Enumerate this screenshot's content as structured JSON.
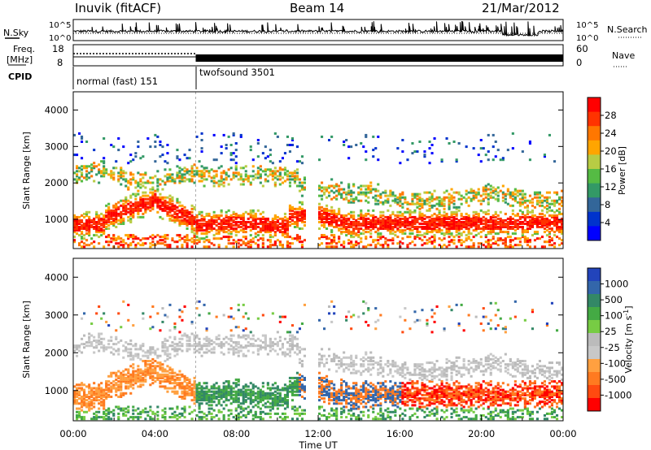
{
  "header": {
    "station": "Inuvik (fitACF)",
    "beam": "Beam 14",
    "date": "21/Mar/2012"
  },
  "chart_data": [
    {
      "type": "line",
      "panel": "noise",
      "left_label": "N.Sky",
      "right_label": "N.Search",
      "ytick_labels_left": [
        "10^5",
        "10^0"
      ],
      "ytick_labels_right": [
        "10^5",
        "10^0"
      ],
      "x_range_hours": [
        0,
        24
      ]
    },
    {
      "type": "line",
      "panel": "frequency-nave",
      "left_label_top": "Freq.",
      "left_label_bottom": "[MHz]",
      "right_label": "Nave",
      "freq_ticks": [
        "18",
        "8"
      ],
      "nave_ticks": [
        "60",
        "0"
      ],
      "x_range_hours": [
        0,
        24
      ]
    },
    {
      "type": "table",
      "panel": "cpid",
      "label": "CPID",
      "modes": [
        {
          "name": "normal (fast) 151",
          "start_hour": 0,
          "end_hour": 6
        },
        {
          "name": "twofsound 3501",
          "start_hour": 6,
          "end_hour": 24
        }
      ]
    },
    {
      "type": "heatmap",
      "panel": "power",
      "ylabel": "Slant Range [km]",
      "ylim": [
        200,
        4500
      ],
      "y_ticks": [
        1000,
        2000,
        3000,
        4000
      ],
      "colorbar_label": "Power [dB]",
      "colorbar_ticks": [
        "28",
        "24",
        "20",
        "16",
        "12",
        "8",
        "4"
      ],
      "colorbar_colors": [
        "#ff0000",
        "#ff3300",
        "#ff7700",
        "#ffa500",
        "#b8cc44",
        "#55bb44",
        "#339966",
        "#336699",
        "#0033cc",
        "#0000ff"
      ]
    },
    {
      "type": "heatmap",
      "panel": "velocity",
      "ylabel": "Slant Range [km]",
      "ylim": [
        200,
        4500
      ],
      "y_ticks": [
        1000,
        2000,
        3000,
        4000
      ],
      "colorbar_label": "Velocity [m s",
      "colorbar_label_sup": "-1",
      "colorbar_label_end": "]",
      "colorbar_ticks": [
        "1000",
        "500",
        "100",
        "25",
        "-25",
        "-100",
        "-500",
        "-1000"
      ],
      "colorbar_colors": [
        "#2244bb",
        "#3366aa",
        "#338866",
        "#44aa44",
        "#77cc44",
        "#bbbbbb",
        "#c8c8c8",
        "#ffa040",
        "#ff7a20",
        "#ff4a10",
        "#ff0000"
      ],
      "xlabel": "Time UT",
      "x_tick_labels": [
        "00:00",
        "04:00",
        "08:00",
        "12:00",
        "16:00",
        "20:00",
        "00:00"
      ],
      "x_range_hours": [
        0,
        24
      ]
    }
  ]
}
